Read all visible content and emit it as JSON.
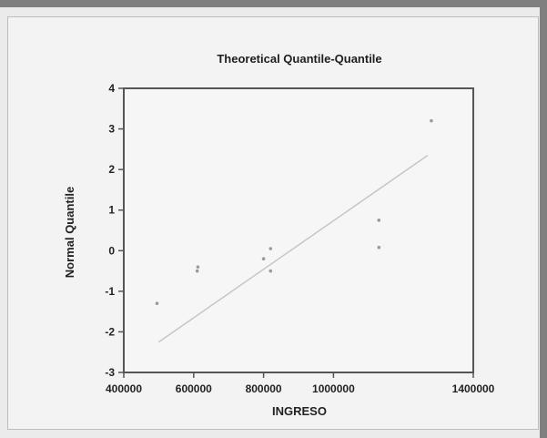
{
  "chart_data": {
    "type": "scatter",
    "title": "Theoretical Quantile-Quantile",
    "xlabel": "INGRESO",
    "ylabel": "Normal Quantile",
    "xlim": [
      400000,
      1400000
    ],
    "ylim": [
      -3,
      4
    ],
    "xticks": [
      400000,
      600000,
      800000,
      1000000,
      1400000
    ],
    "xtick_labels": [
      "400000",
      "600000",
      "800000",
      "1000000",
      "1400000"
    ],
    "yticks": [
      -3,
      -2,
      -1,
      0,
      1,
      2,
      3,
      4
    ],
    "ytick_labels": [
      "-3",
      "-2",
      "-1",
      "0",
      "1",
      "2",
      "3",
      "4"
    ],
    "points": [
      {
        "x": 495000,
        "y": -1.3
      },
      {
        "x": 610000,
        "y": -0.5
      },
      {
        "x": 612000,
        "y": -0.4
      },
      {
        "x": 800000,
        "y": -0.2
      },
      {
        "x": 820000,
        "y": 0.05
      },
      {
        "x": 820000,
        "y": -0.5
      },
      {
        "x": 1130000,
        "y": 0.08
      },
      {
        "x": 1130000,
        "y": 0.75
      },
      {
        "x": 1280000,
        "y": 3.2
      }
    ],
    "reference_line": {
      "x": [
        500000,
        1270000
      ],
      "y": [
        -2.25,
        2.35
      ]
    },
    "grid": false,
    "colors": {
      "points": "#9a9a9a",
      "line": "#c6c6c6",
      "axes": "#555555"
    }
  }
}
